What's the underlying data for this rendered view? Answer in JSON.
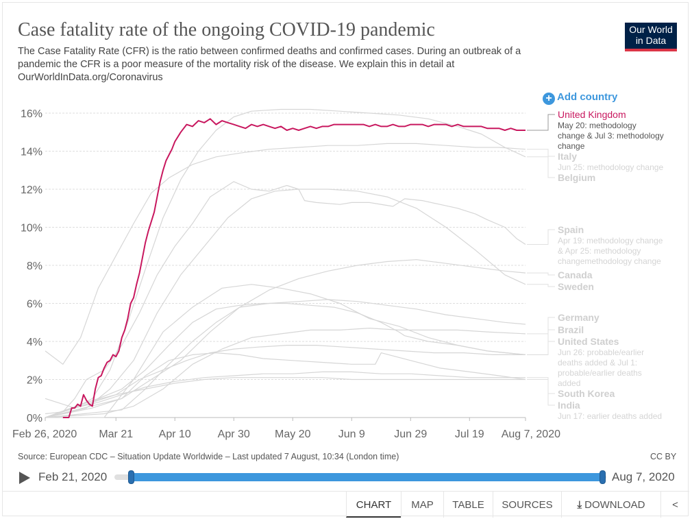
{
  "header": {
    "title": "Case fatality rate of the ongoing COVID-19 pandemic",
    "subtitle": "The Case Fatality Rate (CFR) is the ratio between confirmed deaths and confirmed cases. During an outbreak of a pandemic the CFR is a poor measure of the mortality risk of the disease. We explain this in detail at OurWorldInData.org/Coronavirus",
    "logo_line1": "Our World",
    "logo_line2": "in Data"
  },
  "controls": {
    "add_country_label": "Add country",
    "add_country_icon": "plus-circle-icon"
  },
  "chart_data": {
    "type": "line",
    "x_ticks": [
      "Feb 26, 2020",
      "Mar 21",
      "Apr 10",
      "Apr 30",
      "May 20",
      "Jun 9",
      "Jun 29",
      "Jul 19",
      "Aug 7, 2020"
    ],
    "x_tick_days": [
      0,
      24,
      44,
      64,
      84,
      104,
      124,
      144,
      163
    ],
    "y_ticks": [
      "0%",
      "2%",
      "4%",
      "6%",
      "8%",
      "10%",
      "12%",
      "14%",
      "16%"
    ],
    "ylim": [
      0,
      16.5
    ],
    "xlim_days": [
      0,
      163
    ],
    "grid": "horizontal dashed",
    "highlight_color": "#c8175e",
    "background_color": "#d6d6d6",
    "series": [
      {
        "name": "United Kingdom",
        "highlight": true,
        "x": [
          6,
          7,
          8,
          9,
          10,
          11,
          12,
          13,
          14,
          15,
          16,
          17,
          18,
          19,
          20,
          21,
          22,
          23,
          24,
          25,
          26,
          27,
          28,
          29,
          30,
          31,
          32,
          33,
          34,
          35,
          36,
          37,
          38,
          39,
          40,
          41,
          42,
          43,
          44,
          46,
          48,
          50,
          52,
          54,
          56,
          58,
          60,
          62,
          64,
          66,
          68,
          70,
          72,
          74,
          76,
          78,
          80,
          82,
          84,
          86,
          88,
          90,
          92,
          94,
          96,
          98,
          100,
          102,
          104,
          106,
          108,
          110,
          112,
          114,
          116,
          118,
          120,
          122,
          124,
          126,
          128,
          130,
          132,
          134,
          136,
          138,
          140,
          142,
          144,
          146,
          148,
          150,
          152,
          154,
          156,
          158,
          160,
          163
        ],
        "y": [
          0,
          0,
          0,
          0.5,
          0.5,
          0.7,
          0.6,
          1.2,
          0.9,
          0.7,
          0.6,
          1.5,
          2.1,
          2.2,
          2.6,
          2.9,
          3.0,
          3.3,
          3.2,
          3.5,
          4.2,
          4.6,
          5.2,
          6.0,
          6.3,
          7.0,
          7.6,
          8.4,
          9.2,
          9.8,
          10.3,
          10.8,
          11.6,
          12.4,
          13.0,
          13.5,
          13.8,
          14.1,
          14.5,
          15.0,
          15.4,
          15.3,
          15.6,
          15.5,
          15.7,
          15.4,
          15.6,
          15.5,
          15.4,
          15.3,
          15.2,
          15.4,
          15.3,
          15.4,
          15.3,
          15.2,
          15.3,
          15.1,
          15.2,
          15.1,
          15.2,
          15.3,
          15.2,
          15.3,
          15.3,
          15.4,
          15.4,
          15.4,
          15.4,
          15.4,
          15.4,
          15.3,
          15.4,
          15.3,
          15.3,
          15.4,
          15.3,
          15.3,
          15.4,
          15.4,
          15.4,
          15.3,
          15.4,
          15.4,
          15.4,
          15.3,
          15.4,
          15.3,
          15.3,
          15.3,
          15.3,
          15.2,
          15.2,
          15.2,
          15.1,
          15.2,
          15.1,
          15.1
        ]
      },
      {
        "name": "Italy",
        "x": [
          0,
          6,
          12,
          18,
          24,
          30,
          36,
          42,
          50,
          58,
          66,
          76,
          86,
          96,
          106,
          116,
          126,
          136,
          146,
          154,
          163
        ],
        "y": [
          3.5,
          2.8,
          4.2,
          6.8,
          8.5,
          10.2,
          11.8,
          12.6,
          13.3,
          13.7,
          13.9,
          14.1,
          14.2,
          14.3,
          14.3,
          14.4,
          14.4,
          14.3,
          14.2,
          14.2,
          14.1
        ]
      },
      {
        "name": "Belgium",
        "x": [
          0,
          10,
          16,
          22,
          28,
          34,
          40,
          46,
          52,
          58,
          64,
          70,
          80,
          90,
          100,
          110,
          120,
          130,
          140,
          148,
          156,
          163
        ],
        "y": [
          1.0,
          0.5,
          1.0,
          2.5,
          5.0,
          7.8,
          10.5,
          12.5,
          14.0,
          15.1,
          15.8,
          16.1,
          16.2,
          16.2,
          16.1,
          16.0,
          15.9,
          15.7,
          15.3,
          14.9,
          14.2,
          13.7
        ]
      },
      {
        "name": "Spain",
        "x": [
          0,
          6,
          10,
          14,
          20,
          26,
          32,
          38,
          44,
          50,
          56,
          60,
          64,
          70,
          76,
          82,
          86,
          88,
          92,
          100,
          104,
          110,
          118,
          122,
          128,
          134,
          140,
          146,
          150,
          156,
          160,
          163
        ],
        "y": [
          0.2,
          0.3,
          1.0,
          2.0,
          2.5,
          3.8,
          5.5,
          7.5,
          9.0,
          10.2,
          11.6,
          12.0,
          12.4,
          12.0,
          11.9,
          12.2,
          12.0,
          11.4,
          11.3,
          11.2,
          11.3,
          11.3,
          11.1,
          11.5,
          11.4,
          11.2,
          11.0,
          10.7,
          10.4,
          10.0,
          9.4,
          9.1
        ]
      },
      {
        "name": "Canada",
        "x": [
          0,
          16,
          26,
          36,
          46,
          56,
          66,
          76,
          86,
          96,
          106,
          116,
          126,
          136,
          146,
          156,
          163
        ],
        "y": [
          0,
          0.5,
          1.0,
          2.0,
          3.0,
          4.5,
          5.8,
          6.7,
          7.3,
          7.7,
          8.0,
          8.2,
          8.3,
          8.1,
          7.9,
          7.7,
          7.6
        ]
      },
      {
        "name": "Sweden",
        "x": [
          0,
          14,
          22,
          30,
          38,
          46,
          54,
          62,
          70,
          78,
          86,
          96,
          106,
          116,
          126,
          136,
          146,
          156,
          163
        ],
        "y": [
          0,
          0.5,
          1.5,
          3.0,
          5.5,
          7.5,
          9.0,
          10.5,
          11.5,
          11.9,
          12.0,
          12.0,
          11.9,
          11.6,
          11.0,
          10.0,
          8.8,
          7.5,
          7.0
        ]
      },
      {
        "name": "Germany",
        "x": [
          0,
          20,
          30,
          40,
          50,
          60,
          70,
          80,
          90,
          100,
          110,
          120,
          130,
          140,
          150,
          163
        ],
        "y": [
          0,
          0.2,
          0.6,
          1.5,
          2.8,
          3.6,
          4.2,
          4.4,
          4.6,
          4.6,
          4.7,
          4.6,
          4.6,
          4.6,
          4.5,
          4.4
        ]
      },
      {
        "name": "Brazil",
        "x": [
          0,
          20,
          30,
          40,
          50,
          60,
          70,
          80,
          90,
          100,
          110,
          120,
          130,
          140,
          150,
          163
        ],
        "y": [
          0,
          0,
          2.0,
          4.5,
          5.8,
          6.8,
          7.0,
          6.8,
          6.5,
          6.0,
          5.2,
          4.8,
          4.2,
          3.8,
          3.5,
          3.3
        ]
      },
      {
        "name": "United States",
        "x": [
          0,
          18,
          26,
          34,
          42,
          50,
          58,
          66,
          74,
          82,
          90,
          98,
          106,
          114,
          120,
          122,
          130,
          140,
          150,
          163
        ],
        "y": [
          0,
          1.0,
          1.5,
          2.5,
          3.8,
          5.0,
          5.7,
          5.9,
          6.0,
          6.0,
          5.9,
          5.8,
          5.5,
          5.0,
          4.5,
          4.3,
          4.0,
          3.8,
          3.5,
          3.3
        ]
      },
      {
        "name": "South Korea",
        "x": [
          0,
          10,
          18,
          26,
          34,
          44,
          54,
          64,
          74,
          84,
          94,
          104,
          114,
          124,
          134,
          144,
          154,
          163
        ],
        "y": [
          0,
          0.5,
          0.8,
          1.2,
          1.6,
          1.9,
          2.1,
          2.2,
          2.3,
          2.3,
          2.4,
          2.4,
          2.3,
          2.3,
          2.2,
          2.1,
          2.1,
          2.1
        ]
      },
      {
        "name": "India",
        "x": [
          0,
          26,
          34,
          42,
          50,
          58,
          66,
          74,
          84,
          94,
          104,
          112,
          114,
          124,
          134,
          144,
          154,
          163
        ],
        "y": [
          0,
          1.0,
          2.2,
          3.0,
          3.3,
          3.4,
          3.3,
          3.1,
          3.0,
          2.9,
          2.8,
          2.8,
          3.4,
          3.0,
          2.6,
          2.4,
          2.2,
          2.0
        ]
      },
      {
        "name": "",
        "x": [
          0,
          14,
          24,
          34,
          44,
          54,
          64,
          74,
          84,
          94,
          104,
          114,
          124,
          134,
          144,
          154,
          163
        ],
        "y": [
          0,
          0.8,
          1.2,
          1.5,
          1.8,
          2.0,
          2.1,
          2.1,
          2.1,
          2.1,
          2.0,
          2.0,
          2.0,
          2.0,
          2.0,
          2.0,
          2.0
        ]
      },
      {
        "name": "",
        "x": [
          0,
          26,
          34,
          42,
          50,
          58,
          66,
          76,
          86,
          96,
          106,
          116,
          126,
          136,
          146,
          156,
          163
        ],
        "y": [
          0,
          0.4,
          1.5,
          2.8,
          4.0,
          5.0,
          5.8,
          6.0,
          6.1,
          6.2,
          6.1,
          5.9,
          5.7,
          5.4,
          5.2,
          5.0,
          4.9
        ]
      },
      {
        "name": "",
        "x": [
          0,
          24,
          32,
          40,
          48,
          56,
          64,
          72,
          82,
          92,
          102,
          112,
          122,
          132,
          142,
          152,
          163
        ],
        "y": [
          0,
          1.2,
          2.0,
          2.5,
          3.0,
          3.4,
          3.6,
          3.7,
          3.8,
          3.8,
          3.7,
          3.6,
          3.5,
          3.4,
          3.4,
          3.3,
          3.3
        ]
      }
    ]
  },
  "labels": [
    {
      "text": "United Kingdom",
      "style": "uk",
      "anchor_y": 15.1
    },
    {
      "text": "May 20: methodology",
      "style": "uk-note"
    },
    {
      "text": "change & Jul 3: methodology",
      "style": "uk-note"
    },
    {
      "text": "change",
      "style": "uk-note"
    },
    {
      "text": "Italy",
      "style": "name",
      "anchor_y": 14.1
    },
    {
      "text": "Jun 25: methodology change",
      "style": "note"
    },
    {
      "text": "Belgium",
      "style": "name",
      "anchor_y": 13.7
    },
    {
      "text": "Spain",
      "style": "name",
      "anchor_y": 9.1
    },
    {
      "text": "Apr 19: methodology change",
      "style": "note"
    },
    {
      "text": "& Apr 25: methodology",
      "style": "note"
    },
    {
      "text": "changemethodology change",
      "style": "note"
    },
    {
      "text": "Canada",
      "style": "name",
      "anchor_y": 7.6
    },
    {
      "text": "Sweden",
      "style": "name",
      "anchor_y": 7.0
    },
    {
      "text": "Germany",
      "style": "name",
      "anchor_y": 4.4
    },
    {
      "text": "Brazil",
      "style": "name",
      "anchor_y": 3.3
    },
    {
      "text": "United States",
      "style": "name",
      "anchor_y": 3.3
    },
    {
      "text": "Jun 26: probable/earlier",
      "style": "note"
    },
    {
      "text": "deaths added & Jul 1:",
      "style": "note"
    },
    {
      "text": "probable/earlier deaths",
      "style": "note"
    },
    {
      "text": "added",
      "style": "note"
    },
    {
      "text": "South Korea",
      "style": "name",
      "anchor_y": 2.1
    },
    {
      "text": "India",
      "style": "name",
      "anchor_y": 2.0
    },
    {
      "text": "Jun 17: earlier deaths added",
      "style": "note"
    }
  ],
  "footer": {
    "source": "Source: European CDC – Situation Update Worldwide – Last updated 7 August, 10:34 (London time)",
    "license": "CC BY"
  },
  "timeline": {
    "start_label": "Feb 21, 2020",
    "end_label": "Aug 7, 2020",
    "play_icon": "play-icon"
  },
  "tabs": [
    {
      "label": "CHART",
      "active": true
    },
    {
      "label": "MAP"
    },
    {
      "label": "TABLE"
    },
    {
      "label": "SOURCES"
    },
    {
      "label": "DOWNLOAD",
      "icon": "download-icon"
    }
  ],
  "share_icon": "share-icon"
}
